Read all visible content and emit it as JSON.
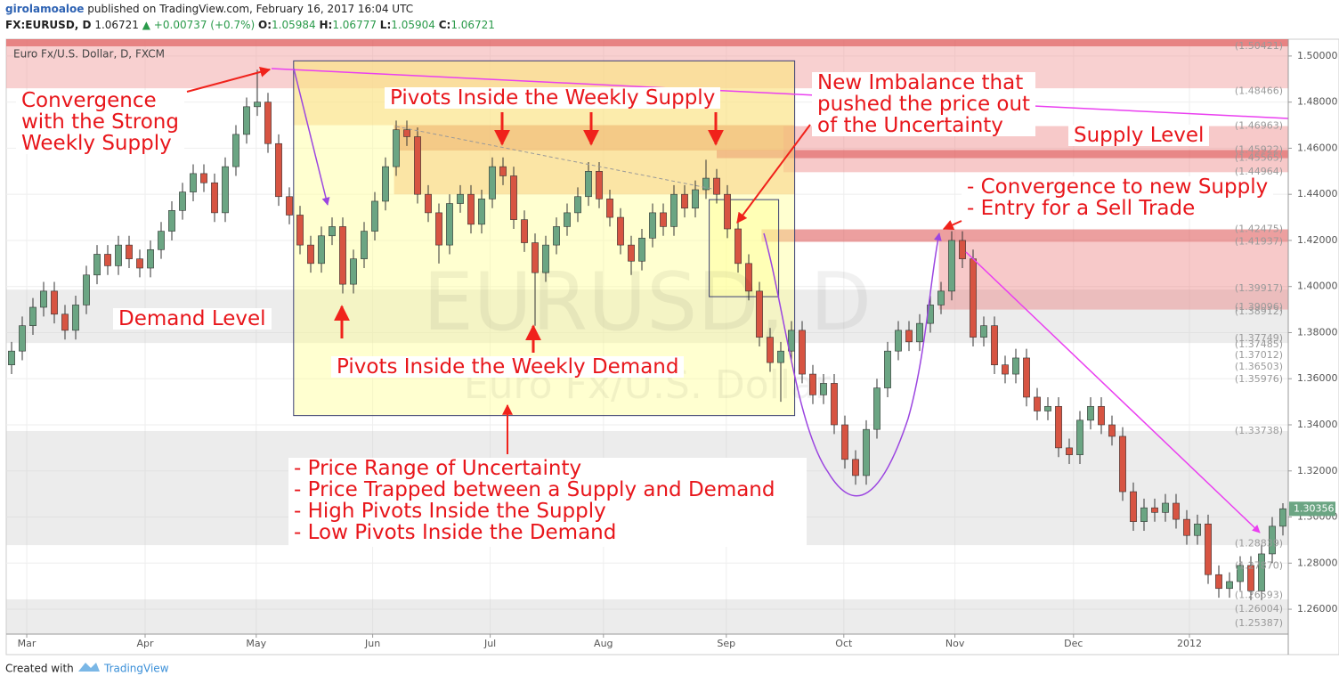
{
  "header": {
    "author": "girolamoaloe",
    "published": "published on TradingView.com, February 16, 2017 16:04 UTC",
    "symbol": "FX:EURUSD, D",
    "price": "1.06721",
    "change": "▲ +0.00737 (+0.7%)",
    "ohlc": [
      {
        "key": "O:",
        "value": "1.05984"
      },
      {
        "key": "H:",
        "value": "1.06777"
      },
      {
        "key": "L:",
        "value": "1.05904"
      },
      {
        "key": "C:",
        "value": "1.06721"
      }
    ]
  },
  "chart_data": {
    "type": "candlestick",
    "title": "Euro Fx/U.S. Dollar, D, FXCM",
    "watermark": [
      "EURUSD, D",
      "Euro Fx/U.S. Dollar"
    ],
    "up_color": "#6ba583",
    "down_color": "#d75442",
    "open": [
      1.366,
      1.372,
      1.383,
      1.391,
      1.398,
      1.388,
      1.381,
      1.392,
      1.405,
      1.414,
      1.409,
      1.418,
      1.412,
      1.408,
      1.416,
      1.424,
      1.433,
      1.441,
      1.449,
      1.445,
      1.432,
      1.452,
      1.466,
      1.478,
      1.48,
      1.462,
      1.439,
      1.431,
      1.418,
      1.41,
      1.422,
      1.426,
      1.401,
      1.412,
      1.424,
      1.437,
      1.452,
      1.468,
      1.465,
      1.44,
      1.432,
      1.418,
      1.436,
      1.44,
      1.427,
      1.438,
      1.452,
      1.448,
      1.429,
      1.419,
      1.406,
      1.418,
      1.426,
      1.432,
      1.439,
      1.45,
      1.438,
      1.43,
      1.418,
      1.411,
      1.421,
      1.432,
      1.426,
      1.44,
      1.434,
      1.442,
      1.447,
      1.44,
      1.425,
      1.41,
      1.398,
      1.378,
      1.367,
      1.372,
      1.381,
      1.362,
      1.353,
      1.358,
      1.34,
      1.325,
      1.318,
      1.338,
      1.356,
      1.372,
      1.381,
      1.376,
      1.384,
      1.392,
      1.398,
      1.42,
      1.412,
      1.378,
      1.383,
      1.366,
      1.362,
      1.369,
      1.352,
      1.346,
      1.348,
      1.33,
      1.327,
      1.342,
      1.348,
      1.34,
      1.335,
      1.311,
      1.298,
      1.304,
      1.302,
      1.306,
      1.299,
      1.292,
      1.297,
      1.275,
      1.269,
      1.272,
      1.279,
      1.268,
      1.284,
      1.296
    ],
    "high": [
      1.376,
      1.387,
      1.395,
      1.402,
      1.402,
      1.392,
      1.396,
      1.409,
      1.418,
      1.418,
      1.422,
      1.422,
      1.416,
      1.42,
      1.428,
      1.437,
      1.445,
      1.453,
      1.453,
      1.449,
      1.456,
      1.47,
      1.482,
      1.494,
      1.484,
      1.466,
      1.443,
      1.435,
      1.422,
      1.426,
      1.43,
      1.43,
      1.416,
      1.428,
      1.441,
      1.456,
      1.472,
      1.472,
      1.469,
      1.444,
      1.436,
      1.44,
      1.444,
      1.444,
      1.442,
      1.456,
      1.456,
      1.452,
      1.433,
      1.423,
      1.422,
      1.43,
      1.436,
      1.443,
      1.454,
      1.454,
      1.442,
      1.434,
      1.422,
      1.425,
      1.436,
      1.436,
      1.444,
      1.444,
      1.446,
      1.455,
      1.451,
      1.444,
      1.429,
      1.414,
      1.402,
      1.382,
      1.376,
      1.385,
      1.385,
      1.366,
      1.362,
      1.362,
      1.344,
      1.329,
      1.342,
      1.36,
      1.376,
      1.385,
      1.385,
      1.388,
      1.396,
      1.402,
      1.424,
      1.424,
      1.416,
      1.387,
      1.387,
      1.37,
      1.373,
      1.373,
      1.356,
      1.352,
      1.352,
      1.334,
      1.346,
      1.352,
      1.352,
      1.344,
      1.339,
      1.315,
      1.308,
      1.308,
      1.31,
      1.31,
      1.303,
      1.301,
      1.301,
      1.279,
      1.276,
      1.283,
      1.283,
      1.288,
      1.3,
      1.306
    ],
    "low": [
      1.362,
      1.368,
      1.379,
      1.387,
      1.384,
      1.377,
      1.377,
      1.388,
      1.401,
      1.405,
      1.405,
      1.408,
      1.404,
      1.404,
      1.412,
      1.42,
      1.429,
      1.437,
      1.441,
      1.428,
      1.428,
      1.448,
      1.462,
      1.474,
      1.458,
      1.435,
      1.427,
      1.414,
      1.406,
      1.406,
      1.418,
      1.397,
      1.397,
      1.408,
      1.42,
      1.433,
      1.448,
      1.461,
      1.436,
      1.428,
      1.41,
      1.414,
      1.432,
      1.423,
      1.423,
      1.434,
      1.444,
      1.425,
      1.415,
      1.383,
      1.402,
      1.414,
      1.422,
      1.428,
      1.435,
      1.434,
      1.426,
      1.414,
      1.405,
      1.407,
      1.417,
      1.422,
      1.422,
      1.43,
      1.43,
      1.438,
      1.436,
      1.421,
      1.406,
      1.394,
      1.374,
      1.363,
      1.35,
      1.368,
      1.358,
      1.349,
      1.349,
      1.336,
      1.321,
      1.314,
      1.314,
      1.334,
      1.352,
      1.368,
      1.372,
      1.372,
      1.38,
      1.388,
      1.394,
      1.408,
      1.374,
      1.374,
      1.362,
      1.358,
      1.358,
      1.348,
      1.342,
      1.342,
      1.326,
      1.323,
      1.323,
      1.338,
      1.336,
      1.331,
      1.307,
      1.294,
      1.294,
      1.298,
      1.298,
      1.295,
      1.288,
      1.288,
      1.271,
      1.265,
      1.265,
      1.268,
      1.264,
      1.264,
      1.28,
      1.292
    ],
    "close": [
      1.372,
      1.383,
      1.391,
      1.398,
      1.388,
      1.381,
      1.392,
      1.405,
      1.414,
      1.409,
      1.418,
      1.412,
      1.408,
      1.416,
      1.424,
      1.433,
      1.441,
      1.449,
      1.445,
      1.432,
      1.452,
      1.466,
      1.478,
      1.48,
      1.462,
      1.439,
      1.431,
      1.418,
      1.41,
      1.422,
      1.426,
      1.401,
      1.412,
      1.424,
      1.437,
      1.452,
      1.468,
      1.465,
      1.44,
      1.432,
      1.418,
      1.436,
      1.44,
      1.427,
      1.438,
      1.452,
      1.448,
      1.429,
      1.419,
      1.406,
      1.418,
      1.426,
      1.432,
      1.439,
      1.45,
      1.438,
      1.43,
      1.418,
      1.411,
      1.421,
      1.432,
      1.426,
      1.44,
      1.434,
      1.442,
      1.447,
      1.44,
      1.425,
      1.41,
      1.398,
      1.378,
      1.367,
      1.372,
      1.381,
      1.362,
      1.353,
      1.358,
      1.34,
      1.325,
      1.318,
      1.338,
      1.356,
      1.372,
      1.381,
      1.376,
      1.384,
      1.392,
      1.398,
      1.42,
      1.412,
      1.378,
      1.383,
      1.366,
      1.362,
      1.369,
      1.352,
      1.346,
      1.348,
      1.33,
      1.327,
      1.342,
      1.348,
      1.34,
      1.335,
      1.311,
      1.298,
      1.304,
      1.302,
      1.306,
      1.299,
      1.292,
      1.297,
      1.275,
      1.269,
      1.272,
      1.279,
      1.268,
      1.284,
      1.296,
      1.3036
    ],
    "xlim": [
      -0.5,
      119.5
    ],
    "xticks": [
      {
        "value": 1.42,
        "label": "Mar"
      },
      {
        "value": 12.5,
        "label": "Apr"
      },
      {
        "value": 22.9,
        "label": "May"
      },
      {
        "value": 33.8,
        "label": "Jun"
      },
      {
        "value": 44.8,
        "label": "Jul"
      },
      {
        "value": 55.4,
        "label": "Aug"
      },
      {
        "value": 66.9,
        "label": "Sep"
      },
      {
        "value": 77.9,
        "label": "Oct"
      },
      {
        "value": 88.3,
        "label": "Nov"
      },
      {
        "value": 99.4,
        "label": "Dec"
      },
      {
        "value": 110.25,
        "label": "2012"
      }
    ],
    "ylim": [
      1.2492,
      1.5073
    ],
    "yticks": [
      {
        "value": 1.26,
        "label": "1.26000"
      },
      {
        "value": 1.28,
        "label": "1.28000"
      },
      {
        "value": 1.3,
        "label": "1.30000"
      },
      {
        "value": 1.32,
        "label": "1.32000"
      },
      {
        "value": 1.34,
        "label": "1.34000"
      },
      {
        "value": 1.36,
        "label": "1.36000"
      },
      {
        "value": 1.38,
        "label": "1.38000"
      },
      {
        "value": 1.4,
        "label": "1.40000"
      },
      {
        "value": 1.42,
        "label": "1.42000"
      },
      {
        "value": 1.44,
        "label": "1.44000"
      },
      {
        "value": 1.46,
        "label": "1.46000"
      },
      {
        "value": 1.48,
        "label": "1.48000"
      },
      {
        "value": 1.5,
        "label": "1.50000"
      }
    ],
    "grid": true,
    "zones": [
      {
        "x": [
          -0.5,
          119.5
        ],
        "y": [
          1.3755,
          1.3987
        ],
        "color": "rgba(200,200,200,0.35)"
      },
      {
        "x": [
          -0.5,
          119.5
        ],
        "y": [
          1.2878,
          1.3373
        ],
        "color": "rgba(200,200,200,0.35)"
      },
      {
        "x": [
          -0.5,
          119.5
        ],
        "y": [
          1.2492,
          1.2643
        ],
        "color": "rgba(200,200,200,0.35)"
      },
      {
        "x": [
          -0.5,
          119.5
        ],
        "y": [
          1.486,
          1.5073
        ],
        "color": "rgba(240,150,150,0.45)"
      },
      {
        "x": [
          -0.5,
          119.5
        ],
        "y": [
          1.5042,
          1.5073
        ],
        "color": "rgba(220,80,80,0.6)"
      },
      {
        "x": [
          26.4,
          73.3
        ],
        "y": [
          1.47,
          1.498
        ],
        "color": "rgba(245,180,110,0.45)"
      },
      {
        "x": [
          35.8,
          73.3
        ],
        "y": [
          1.44,
          1.47
        ],
        "color": "rgba(240,160,100,0.5)"
      },
      {
        "x": [
          35.8,
          73.3
        ],
        "y": [
          1.459,
          1.47
        ],
        "color": "rgba(225,110,70,0.5)"
      },
      {
        "x": [
          72.25,
          119.5
        ],
        "y": [
          1.4496,
          1.4696
        ],
        "color": "rgba(235,120,120,0.4)"
      },
      {
        "x": [
          66,
          119.5
        ],
        "y": [
          1.4557,
          1.4592
        ],
        "color": "rgba(220,80,80,0.55)"
      },
      {
        "x": [
          70.2,
          119.5
        ],
        "y": [
          1.4194,
          1.4248
        ],
        "color": "rgba(220,80,80,0.55)"
      },
      {
        "x": [
          86.8,
          119.5
        ],
        "y": [
          1.39,
          1.4194
        ],
        "color": "rgba(235,120,120,0.4)"
      },
      {
        "x": [
          26.4,
          73.3
        ],
        "y": [
          1.344,
          1.4979
        ],
        "color": "rgba(255,255,150,0.45)",
        "border": "#3b3f73"
      },
      {
        "x": [
          65.3,
          71.8
        ],
        "y": [
          1.3956,
          1.4377
        ],
        "color": "rgba(255,255,150,0.45)",
        "border": "#3b3f73"
      }
    ],
    "price_labels": [
      {
        "value": 1.50421,
        "label": "(1.50421)"
      },
      {
        "value": 1.48466,
        "label": "(1.48466)"
      },
      {
        "value": 1.46963,
        "label": "(1.46963)"
      },
      {
        "value": 1.45922,
        "label": "(1.45922)"
      },
      {
        "value": 1.45565,
        "label": "(1.45565)"
      },
      {
        "value": 1.44964,
        "label": "(1.44964)"
      },
      {
        "value": 1.42475,
        "label": "(1.42475)"
      },
      {
        "value": 1.41937,
        "label": "(1.41937)"
      },
      {
        "value": 1.39917,
        "label": "(1.39917)"
      },
      {
        "value": 1.39096,
        "label": "(1.39096)"
      },
      {
        "value": 1.38912,
        "label": "(1.38912)"
      },
      {
        "value": 1.37749,
        "label": "(1.37749)"
      },
      {
        "value": 1.37485,
        "label": "(1.37485)"
      },
      {
        "value": 1.37012,
        "label": "(1.37012)"
      },
      {
        "value": 1.36503,
        "label": "(1.36503)"
      },
      {
        "value": 1.35976,
        "label": "(1.35976)"
      },
      {
        "value": 1.33738,
        "label": "(1.33738)"
      },
      {
        "value": 1.28839,
        "label": "(1.28839)"
      },
      {
        "value": 1.2787,
        "label": "(1.27870)"
      },
      {
        "value": 1.26593,
        "label": "(1.26593)"
      },
      {
        "value": 1.26004,
        "label": "(1.26004)"
      },
      {
        "value": 1.25387,
        "label": "(1.25387)"
      }
    ],
    "last_price": {
      "value": 1.30356,
      "label": "1.30356"
    },
    "annotations": [
      {
        "lines": [
          "Convergence",
          "with the Strong",
          "Weekly Supply"
        ]
      },
      {
        "lines": [
          "Pivots Inside the Weekly Supply"
        ]
      },
      {
        "lines": [
          "New Imbalance that",
          "pushed the price out",
          "of the Uncertainty"
        ]
      },
      {
        "lines": [
          "Supply Level"
        ]
      },
      {
        "lines": [
          "- Convergence to new Supply",
          "- Entry for a Sell Trade"
        ]
      },
      {
        "lines": [
          "Demand Level"
        ]
      },
      {
        "lines": [
          "Pivots Inside the Weekly Demand"
        ]
      },
      {
        "lines": [
          "- Price Range of Uncertainty",
          "- Price Trapped between a Supply and Demand",
          "- High Pivots Inside the Supply",
          "- Low Pivots Inside the Demand"
        ]
      }
    ]
  },
  "footer": {
    "created": "Created with",
    "brand": "TradingView"
  }
}
